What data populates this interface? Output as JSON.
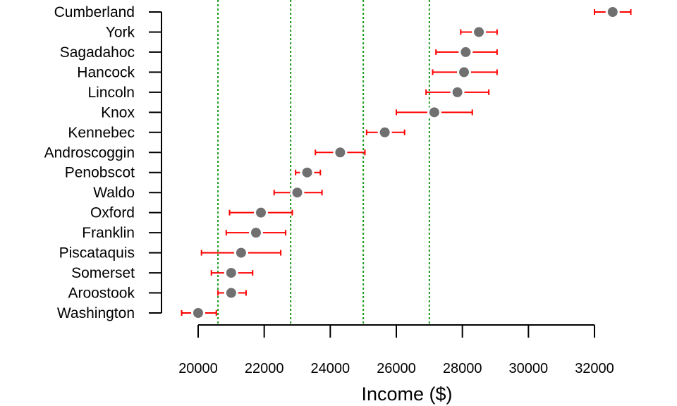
{
  "chart_data": {
    "type": "scatter",
    "title": "",
    "xlabel": "Income ($)",
    "ylabel": "",
    "xlim": [
      18500,
      33000
    ],
    "x_ticks": [
      "20000",
      "22000",
      "24000",
      "26000",
      "28000",
      "30000",
      "32000"
    ],
    "reference_lines": [
      20600,
      22800,
      25000,
      27000
    ],
    "categories": [
      "Washington",
      "Aroostook",
      "Somerset",
      "Piscataquis",
      "Franklin",
      "Oxford",
      "Waldo",
      "Penobscot",
      "Androscoggin",
      "Kennebec",
      "Knox",
      "Lincoln",
      "Hancock",
      "Sagadahoc",
      "York",
      "Cumberland"
    ],
    "series": [
      {
        "values": [
          20000,
          21000,
          21000,
          21300,
          21750,
          21900,
          23000,
          23300,
          24300,
          25650,
          27150,
          27850,
          28050,
          28100,
          28500,
          32550
        ],
        "lower": [
          19500,
          20600,
          20400,
          20100,
          20850,
          20950,
          22300,
          22950,
          23550,
          25100,
          26000,
          26900,
          27100,
          27200,
          27950,
          32000
        ],
        "upper": [
          20550,
          21450,
          21650,
          22500,
          22650,
          22850,
          23750,
          23700,
          25050,
          26250,
          28300,
          28800,
          29050,
          29050,
          29050,
          33100
        ]
      }
    ],
    "colors": {
      "point": "#707070",
      "error_bar": "#ff0000",
      "reference_line": "#1a9a1a",
      "axis": "#000000"
    }
  }
}
